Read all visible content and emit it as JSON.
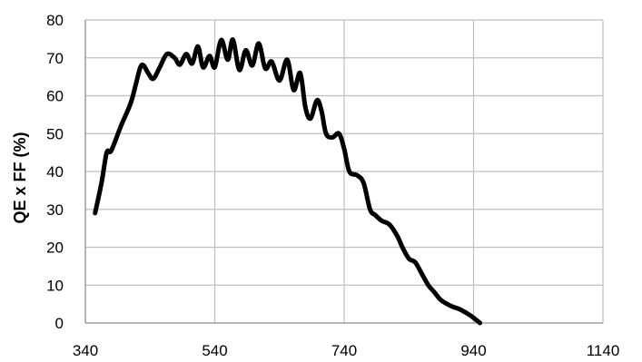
{
  "chart_data": {
    "type": "line",
    "title": "",
    "xlabel": "",
    "ylabel": "QE x FF (%)",
    "xlim": [
      340,
      1140
    ],
    "ylim": [
      0,
      80
    ],
    "x_ticks": [
      340,
      540,
      740,
      940,
      1140
    ],
    "y_ticks": [
      0,
      10,
      20,
      30,
      40,
      50,
      60,
      70,
      80
    ],
    "grid": true,
    "legend": "none",
    "colors": {
      "line": "#000000",
      "grid": "#bfbfbf",
      "axis": "#8c8c8c"
    },
    "series": [
      {
        "points": [
          [
            355,
            29
          ],
          [
            365,
            37
          ],
          [
            373,
            45
          ],
          [
            380,
            45.5
          ],
          [
            395,
            52
          ],
          [
            410,
            58
          ],
          [
            418,
            63
          ],
          [
            425,
            67.5
          ],
          [
            430,
            68
          ],
          [
            437,
            66
          ],
          [
            445,
            64.5
          ],
          [
            455,
            67.5
          ],
          [
            466,
            71
          ],
          [
            478,
            70
          ],
          [
            486,
            68.2
          ],
          [
            496,
            71
          ],
          [
            505,
            68.5
          ],
          [
            514,
            73
          ],
          [
            522,
            67.5
          ],
          [
            532,
            70.5
          ],
          [
            540,
            67.5
          ],
          [
            550,
            74.7
          ],
          [
            560,
            69.5
          ],
          [
            568,
            74.8
          ],
          [
            578,
            66.8
          ],
          [
            588,
            72
          ],
          [
            598,
            68
          ],
          [
            608,
            73.8
          ],
          [
            618,
            67.2
          ],
          [
            628,
            69
          ],
          [
            640,
            64
          ],
          [
            652,
            69.5
          ],
          [
            662,
            61.5
          ],
          [
            672,
            66
          ],
          [
            680,
            57
          ],
          [
            688,
            54
          ],
          [
            698,
            58.8
          ],
          [
            705,
            56
          ],
          [
            712,
            50
          ],
          [
            722,
            49
          ],
          [
            732,
            50
          ],
          [
            740,
            46
          ],
          [
            748,
            40
          ],
          [
            760,
            39
          ],
          [
            770,
            37
          ],
          [
            780,
            30
          ],
          [
            788,
            28.5
          ],
          [
            798,
            27
          ],
          [
            810,
            26
          ],
          [
            822,
            23
          ],
          [
            830,
            20
          ],
          [
            840,
            17
          ],
          [
            850,
            16
          ],
          [
            860,
            13
          ],
          [
            870,
            10
          ],
          [
            880,
            8
          ],
          [
            890,
            6
          ],
          [
            905,
            4.5
          ],
          [
            920,
            3.5
          ],
          [
            935,
            2
          ],
          [
            950,
            0
          ]
        ]
      }
    ]
  }
}
